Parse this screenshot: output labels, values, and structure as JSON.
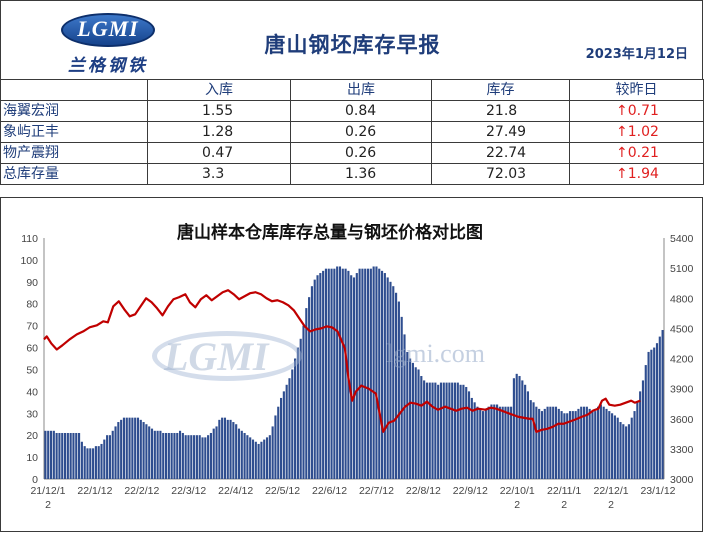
{
  "header": {
    "logo_text": "LGMI",
    "logo_sub": "兰格钢铁",
    "title": "唐山钢坯库存早报",
    "date": "2023年1月12日"
  },
  "table": {
    "columns": [
      "",
      "入库",
      "出库",
      "库存",
      "较昨日"
    ],
    "rows": [
      {
        "name": "海翼宏润",
        "in": "1.55",
        "out": "0.84",
        "stock": "21.8",
        "change": "↑0.71"
      },
      {
        "name": "象屿正丰",
        "in": "1.28",
        "out": "0.26",
        "stock": "27.49",
        "change": "↑1.02"
      },
      {
        "name": "物产震翔",
        "in": "0.47",
        "out": "0.26",
        "stock": "22.74",
        "change": "↑0.21"
      },
      {
        "name": "总库存量",
        "in": "3.3",
        "out": "1.36",
        "stock": "72.03",
        "change": "↑1.94"
      }
    ]
  },
  "watermark": {
    "logo": "LGMI",
    "url": "lgmi.com"
  },
  "chart_data": {
    "type": "bar",
    "title": "唐山样本仓库库存总量与钢坯价格对比图",
    "left_axis": {
      "min": 0,
      "max": 110,
      "ticks": [
        "0",
        "10",
        "20",
        "30",
        "40",
        "50",
        "60",
        "70",
        "80",
        "90",
        "100",
        "110"
      ]
    },
    "right_axis": {
      "min": 3000,
      "max": 5400,
      "ticks": [
        "3000",
        "3300",
        "3600",
        "3900",
        "4200",
        "4500",
        "4800",
        "5100",
        "5400"
      ]
    },
    "x_tick_labels": [
      "21/12/1\n2",
      "22/1/12",
      "22/2/12",
      "22/3/12",
      "22/4/12",
      "22/5/12",
      "22/6/12",
      "22/7/12",
      "22/8/12",
      "22/9/12",
      "22/10/1\n2",
      "22/11/1\n2",
      "22/12/1\n2",
      "23/1/12"
    ],
    "colors": {
      "bars": "#2e4d8f",
      "line": "#c00000"
    },
    "series": [
      {
        "kind": "bar",
        "axis": "left",
        "values": [
          22,
          22,
          22,
          22,
          21,
          21,
          21,
          21,
          21,
          21,
          21,
          21,
          21,
          17,
          15,
          14,
          14,
          14,
          15,
          15,
          16,
          18,
          20,
          20,
          22,
          24,
          26,
          27,
          28,
          28,
          28,
          28,
          28,
          28,
          27,
          26,
          25,
          24,
          23,
          22,
          22,
          22,
          21,
          21,
          21,
          21,
          21,
          21,
          22,
          21,
          20,
          20,
          20,
          20,
          20,
          20,
          19,
          19,
          20,
          21,
          23,
          24,
          27,
          28,
          28,
          27,
          27,
          26,
          25,
          23,
          22,
          21,
          20,
          19,
          18,
          17,
          16,
          17,
          18,
          19,
          20,
          24,
          29,
          33,
          37,
          40,
          43,
          46,
          50,
          55,
          60,
          64,
          70,
          78,
          83,
          88,
          91,
          93,
          94,
          95,
          96,
          96,
          96,
          96,
          97,
          97,
          96,
          96,
          95,
          93,
          92,
          94,
          96,
          96,
          96,
          96,
          96,
          97,
          97,
          96,
          95,
          94,
          92,
          90,
          88,
          85,
          81,
          74,
          66,
          58,
          55,
          53,
          51,
          50,
          47,
          45,
          44,
          44,
          44,
          44,
          43,
          44,
          44,
          44,
          44,
          44,
          44,
          44,
          43,
          43,
          42,
          40,
          37,
          35,
          33,
          32,
          31,
          32,
          33,
          34,
          34,
          34,
          33,
          33,
          33,
          33,
          33,
          46,
          48,
          47,
          45,
          43,
          40,
          36,
          35,
          33,
          32,
          31,
          32,
          33,
          33,
          33,
          33,
          32,
          31,
          30,
          30,
          31,
          31,
          31,
          32,
          33,
          33,
          33,
          32,
          31,
          31,
          33,
          34,
          33,
          32,
          31,
          30,
          29,
          28,
          26,
          25,
          24,
          25,
          28,
          31,
          35,
          40,
          45,
          52,
          58,
          59,
          60,
          62,
          65,
          68
        ]
      },
      {
        "kind": "line",
        "axis": "right",
        "points": [
          [
            0,
            4390
          ],
          [
            3,
            4420
          ],
          [
            8,
            4350
          ],
          [
            14,
            4290
          ],
          [
            20,
            4330
          ],
          [
            28,
            4390
          ],
          [
            36,
            4440
          ],
          [
            43,
            4470
          ],
          [
            50,
            4510
          ],
          [
            58,
            4530
          ],
          [
            65,
            4570
          ],
          [
            70,
            4560
          ],
          [
            76,
            4720
          ],
          [
            82,
            4770
          ],
          [
            88,
            4690
          ],
          [
            94,
            4620
          ],
          [
            100,
            4640
          ],
          [
            106,
            4720
          ],
          [
            112,
            4800
          ],
          [
            118,
            4760
          ],
          [
            124,
            4700
          ],
          [
            130,
            4630
          ],
          [
            136,
            4720
          ],
          [
            142,
            4790
          ],
          [
            148,
            4810
          ],
          [
            155,
            4840
          ],
          [
            160,
            4760
          ],
          [
            166,
            4710
          ],
          [
            172,
            4790
          ],
          [
            178,
            4830
          ],
          [
            184,
            4780
          ],
          [
            190,
            4820
          ],
          [
            196,
            4860
          ],
          [
            202,
            4880
          ],
          [
            208,
            4840
          ],
          [
            214,
            4790
          ],
          [
            220,
            4820
          ],
          [
            226,
            4850
          ],
          [
            232,
            4860
          ],
          [
            238,
            4840
          ],
          [
            244,
            4800
          ],
          [
            250,
            4770
          ],
          [
            256,
            4780
          ],
          [
            262,
            4760
          ],
          [
            268,
            4730
          ],
          [
            274,
            4680
          ],
          [
            280,
            4600
          ],
          [
            286,
            4520
          ],
          [
            292,
            4470
          ],
          [
            298,
            4490
          ],
          [
            304,
            4500
          ],
          [
            310,
            4520
          ],
          [
            316,
            4510
          ],
          [
            322,
            4470
          ],
          [
            330,
            4300
          ],
          [
            334,
            4000
          ],
          [
            338,
            3780
          ],
          [
            342,
            3870
          ],
          [
            348,
            3930
          ],
          [
            356,
            3900
          ],
          [
            364,
            3850
          ],
          [
            372,
            3470
          ],
          [
            378,
            3560
          ],
          [
            384,
            3580
          ],
          [
            390,
            3650
          ],
          [
            396,
            3720
          ],
          [
            402,
            3760
          ],
          [
            408,
            3750
          ],
          [
            414,
            3730
          ],
          [
            420,
            3770
          ],
          [
            426,
            3720
          ],
          [
            432,
            3690
          ],
          [
            440,
            3720
          ],
          [
            446,
            3700
          ],
          [
            452,
            3680
          ],
          [
            458,
            3700
          ],
          [
            464,
            3710
          ],
          [
            470,
            3680
          ],
          [
            476,
            3700
          ],
          [
            484,
            3690
          ],
          [
            490,
            3710
          ],
          [
            496,
            3700
          ],
          [
            502,
            3680
          ],
          [
            508,
            3660
          ],
          [
            514,
            3640
          ],
          [
            520,
            3620
          ],
          [
            526,
            3610
          ],
          [
            532,
            3600
          ],
          [
            536,
            3600
          ],
          [
            540,
            3470
          ],
          [
            546,
            3490
          ],
          [
            552,
            3500
          ],
          [
            558,
            3520
          ],
          [
            564,
            3550
          ],
          [
            570,
            3550
          ],
          [
            576,
            3570
          ],
          [
            582,
            3590
          ],
          [
            590,
            3620
          ],
          [
            596,
            3640
          ],
          [
            602,
            3680
          ],
          [
            608,
            3700
          ],
          [
            612,
            3780
          ],
          [
            616,
            3800
          ],
          [
            620,
            3740
          ],
          [
            626,
            3730
          ],
          [
            632,
            3740
          ],
          [
            638,
            3760
          ],
          [
            644,
            3780
          ],
          [
            648,
            3760
          ],
          [
            654,
            3780
          ]
        ]
      }
    ]
  }
}
